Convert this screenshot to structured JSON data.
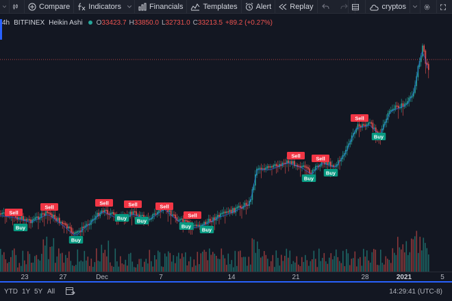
{
  "toolbar": {
    "compare": "Compare",
    "indicators": "Indicators",
    "financials": "Financials",
    "templates": "Templates",
    "alert": "Alert",
    "replay": "Replay",
    "layout_name": "cryptos"
  },
  "legend": {
    "interval": "4h",
    "exchange": "BITFINEX",
    "chart_style": "Heikin Ashi",
    "open_label": "O",
    "open": "33423.7",
    "high_label": "H",
    "high": "33850.0",
    "low_label": "L",
    "low": "32731.0",
    "close_label": "C",
    "close": "33213.5",
    "change": "+89.2 (+0.27%)"
  },
  "signals": {
    "sell_label": "Sell",
    "buy_label": "Buy"
  },
  "x_axis": {
    "ticks": [
      "23",
      "27",
      "Dec",
      "7",
      "14",
      "21",
      "28",
      "2021",
      "5"
    ]
  },
  "bottom": {
    "ranges": [
      "YTD",
      "1Y",
      "5Y",
      "All"
    ],
    "time": "14:29:41 (UTC-8)"
  },
  "colors": {
    "up": "#26a69a",
    "down": "#ef5350",
    "background": "#131722",
    "accent": "#2962ff"
  }
}
